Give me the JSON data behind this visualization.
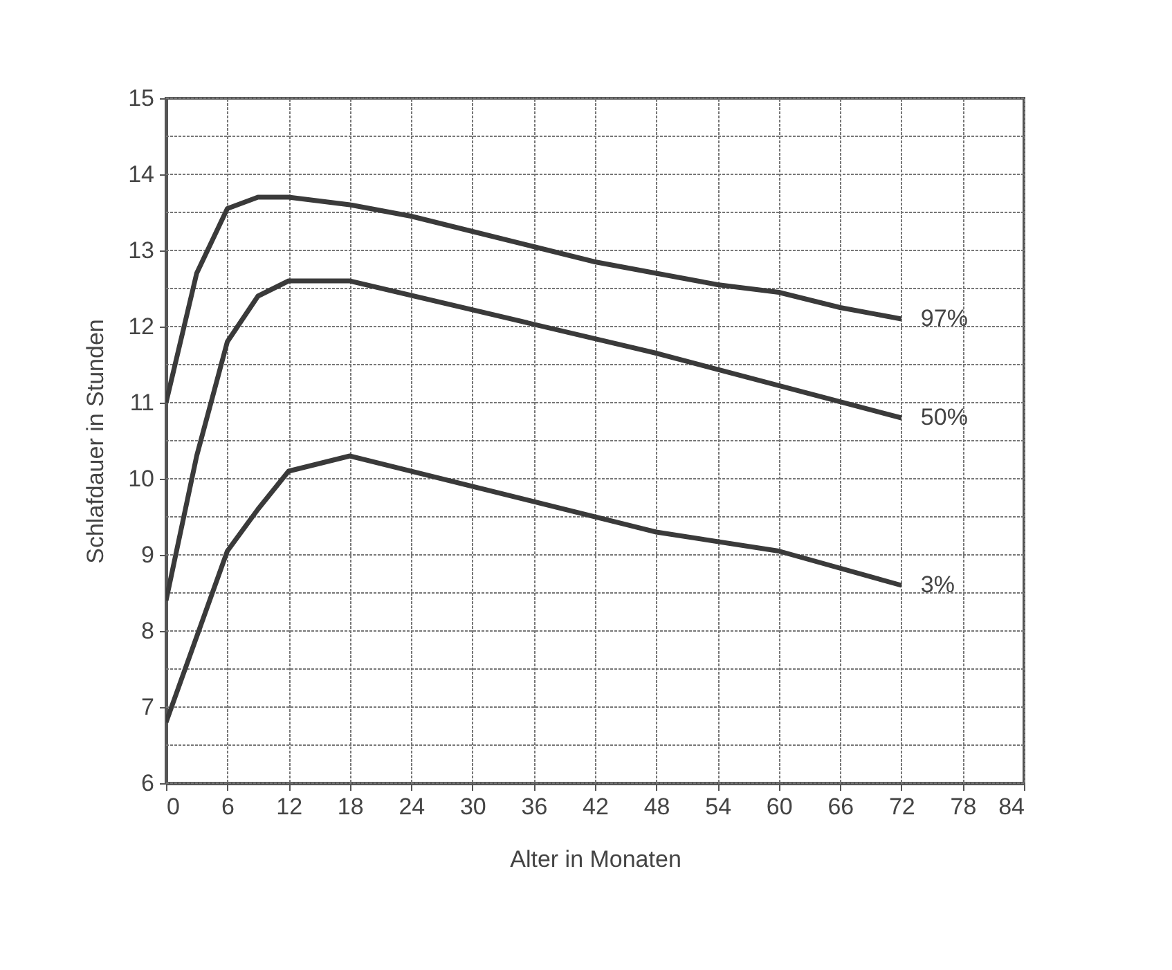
{
  "chart_data": {
    "type": "line",
    "xlabel": "Alter in Monaten",
    "ylabel": "Schlafdauer in Stunden",
    "xlim": [
      0,
      84
    ],
    "xticks": [
      0,
      6,
      12,
      18,
      24,
      30,
      36,
      42,
      48,
      54,
      60,
      66,
      72,
      78,
      84
    ],
    "ylim": [
      6,
      15
    ],
    "yticks": [
      6,
      {
        "value": 6.5,
        "label": null
      },
      7,
      {
        "value": 7.5,
        "label": null
      },
      8,
      {
        "value": 8.5,
        "label": null
      },
      9,
      {
        "value": 9.5,
        "label": null
      },
      10,
      {
        "value": 10.5,
        "label": null
      },
      11,
      {
        "value": 11.5,
        "label": null
      },
      12,
      {
        "value": 12.5,
        "label": null
      },
      13,
      {
        "value": 13.5,
        "label": null
      },
      14,
      {
        "value": 14.5,
        "label": null
      },
      15
    ],
    "grid": true,
    "legend": false,
    "marker": "none",
    "line_style": "solid",
    "series": [
      {
        "name": "97%",
        "color": "#3a3a3a",
        "x": [
          0,
          3,
          6,
          9,
          12,
          18,
          24,
          30,
          36,
          42,
          48,
          54,
          60,
          66,
          72
        ],
        "values": [
          11.0,
          12.7,
          13.55,
          13.7,
          13.7,
          13.6,
          13.45,
          13.25,
          13.05,
          12.85,
          12.7,
          12.55,
          12.45,
          12.25,
          12.1
        ]
      },
      {
        "name": "50%",
        "color": "#3a3a3a",
        "x": [
          0,
          3,
          6,
          9,
          12,
          18,
          48,
          72
        ],
        "values": [
          8.4,
          10.3,
          11.8,
          12.4,
          12.6,
          12.6,
          11.65,
          10.8
        ]
      },
      {
        "name": "3%",
        "color": "#3a3a3a",
        "x": [
          0,
          6,
          9,
          12,
          18,
          48,
          60,
          72
        ],
        "values": [
          6.8,
          9.05,
          9.6,
          10.1,
          10.3,
          9.3,
          9.05,
          8.6
        ]
      }
    ]
  }
}
